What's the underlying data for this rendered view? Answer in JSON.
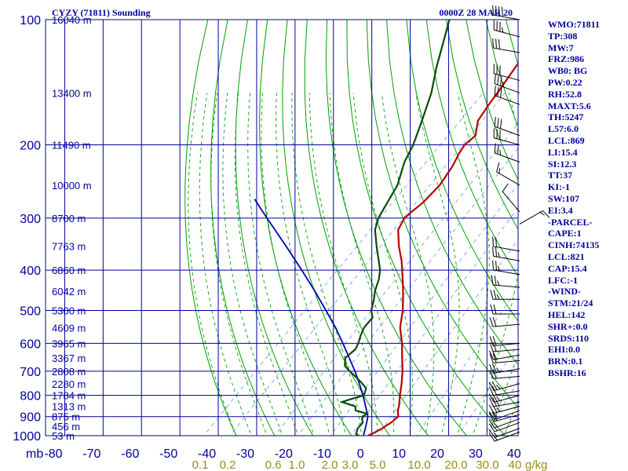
{
  "header": {
    "station": "CYZY (71811) Sounding",
    "time": "0000Z 28 MAR 20"
  },
  "colors": {
    "frame": "#00009c",
    "isotherm": "#00009c",
    "dry_adiabat": "#00a000",
    "moist_adiabat": "#006400",
    "mixing_ratio": "#7aa0e0",
    "temperature": "#b40000",
    "dewpoint": "#0a4a0a",
    "parcel": "#0000b4",
    "wind": "#000000",
    "mixing_ratio_labels": "#9a8c14"
  },
  "chart_data": {
    "type": "skew-t",
    "title": "CYZY (71811) Sounding",
    "valid_time": "0000Z 28 MAR 20",
    "y_axis": {
      "unit_label": "mb",
      "scale": "log-pressure",
      "range": [
        1000,
        100
      ],
      "pressure_ticks": [
        100,
        200,
        300,
        400,
        500,
        600,
        700,
        800,
        900,
        1000
      ]
    },
    "x_axis": {
      "range": [
        -80,
        0
      ],
      "temperature_ticks": [
        "-80",
        "-70",
        "-60",
        "-50",
        "-40",
        "-30",
        "-20",
        "-10",
        "0",
        "10",
        "20",
        "30",
        "40"
      ],
      "mixing_ratio_labels": [
        "0.1",
        "0.2",
        "0.6",
        "1.0",
        "2.0",
        "3.0",
        "5.0",
        "10.0",
        "20.0",
        "30.0",
        "40",
        "g/kg"
      ]
    },
    "height_labels": [
      {
        "p": 100,
        "label": "16040 m"
      },
      {
        "p": 150,
        "label": "13400 m"
      },
      {
        "p": 200,
        "label": "11490 m"
      },
      {
        "p": 250,
        "label": "10000 m"
      },
      {
        "p": 300,
        "label": "8700 m"
      },
      {
        "p": 350,
        "label": "7763 m"
      },
      {
        "p": 400,
        "label": "6860 m"
      },
      {
        "p": 450,
        "label": "6042 m"
      },
      {
        "p": 500,
        "label": "5300 m"
      },
      {
        "p": 550,
        "label": "4609 m"
      },
      {
        "p": 600,
        "label": "3965 m"
      },
      {
        "p": 650,
        "label": "3367 m"
      },
      {
        "p": 700,
        "label": "2808 m"
      },
      {
        "p": 750,
        "label": "2280 m"
      },
      {
        "p": 800,
        "label": "1784 m"
      },
      {
        "p": 850,
        "label": "1313 m"
      },
      {
        "p": 900,
        "label": "875 m"
      },
      {
        "p": 950,
        "label": "456 m"
      },
      {
        "p": 1000,
        "label": "53 m"
      }
    ],
    "series": [
      {
        "type": "line",
        "points": [
          [
            1000,
            1.2
          ],
          [
            985,
            2.0
          ],
          [
            960,
            3.0
          ],
          [
            930,
            3.8
          ],
          [
            900,
            4.1
          ],
          [
            870,
            2.4
          ],
          [
            850,
            1.6
          ],
          [
            800,
            -1.0
          ],
          [
            750,
            -3.6
          ],
          [
            700,
            -6.6
          ],
          [
            650,
            -10.2
          ],
          [
            600,
            -14.0
          ],
          [
            550,
            -18.6
          ],
          [
            500,
            -22.4
          ],
          [
            460,
            -26.2
          ],
          [
            420,
            -30.6
          ],
          [
            380,
            -35.6
          ],
          [
            350,
            -40.2
          ],
          [
            320,
            -44.6
          ],
          [
            300,
            -46.0
          ],
          [
            290,
            -45.8
          ],
          [
            275,
            -45.2
          ],
          [
            250,
            -45.4
          ],
          [
            225,
            -47.0
          ],
          [
            210,
            -48.6
          ],
          [
            200,
            -49.4
          ],
          [
            190,
            -49.0
          ],
          [
            175,
            -52.2
          ],
          [
            160,
            -53.6
          ],
          [
            150,
            -54.4
          ],
          [
            130,
            -56.4
          ],
          [
            115,
            -58.2
          ],
          [
            100,
            -59.6
          ]
        ]
      },
      {
        "type": "line",
        "points": [
          [
            1000,
            -1.2
          ],
          [
            990,
            -2.4
          ],
          [
            960,
            -3.4
          ],
          [
            930,
            -3.6
          ],
          [
            910,
            -4.8
          ],
          [
            900,
            -5.2
          ],
          [
            885,
            -4.8
          ],
          [
            870,
            -8.6
          ],
          [
            850,
            -9.8
          ],
          [
            830,
            -14.4
          ],
          [
            820,
            -13.2
          ],
          [
            800,
            -10.4
          ],
          [
            770,
            -11.6
          ],
          [
            745,
            -14.4
          ],
          [
            720,
            -17.6
          ],
          [
            700,
            -20.4
          ],
          [
            680,
            -23.0
          ],
          [
            650,
            -25.0
          ],
          [
            620,
            -24.6
          ],
          [
            600,
            -25.4
          ],
          [
            575,
            -26.8
          ],
          [
            550,
            -28.0
          ],
          [
            520,
            -28.4
          ],
          [
            500,
            -30.6
          ],
          [
            470,
            -32.8
          ],
          [
            450,
            -34.6
          ],
          [
            420,
            -36.8
          ],
          [
            400,
            -38.8
          ],
          [
            350,
            -46.0
          ],
          [
            320,
            -50.6
          ],
          [
            300,
            -52.8
          ],
          [
            250,
            -56.4
          ],
          [
            220,
            -60.6
          ],
          [
            200,
            -62.8
          ],
          [
            175,
            -66.8
          ],
          [
            150,
            -71.6
          ],
          [
            130,
            -77.0
          ],
          [
            115,
            -81.2
          ],
          [
            100,
            -86.0
          ]
        ]
      },
      {
        "type": "line",
        "points": [
          [
            1000,
            0.0
          ],
          [
            950,
            -1.8
          ],
          [
            900,
            -3.8
          ],
          [
            850,
            -7.1
          ],
          [
            800,
            -10.6
          ],
          [
            750,
            -14.6
          ],
          [
            700,
            -19.0
          ],
          [
            650,
            -24.0
          ],
          [
            600,
            -29.4
          ],
          [
            550,
            -35.4
          ],
          [
            500,
            -42.4
          ],
          [
            450,
            -50.2
          ],
          [
            400,
            -59.2
          ],
          [
            350,
            -69.6
          ],
          [
            300,
            -81.8
          ],
          [
            270,
            -90.0
          ]
        ]
      }
    ]
  },
  "wind_barbs": [
    {
      "p": 100,
      "dir": 280,
      "kt": 40
    },
    {
      "p": 110,
      "dir": 285,
      "kt": 35
    },
    {
      "p": 120,
      "dir": 280,
      "kt": 30
    },
    {
      "p": 140,
      "dir": 285,
      "kt": 30
    },
    {
      "p": 150,
      "dir": 290,
      "kt": 35
    },
    {
      "p": 160,
      "dir": 290,
      "kt": 30
    },
    {
      "p": 190,
      "dir": 290,
      "kt": 30
    },
    {
      "p": 200,
      "dir": 285,
      "kt": 30
    },
    {
      "p": 220,
      "dir": 290,
      "kt": 25
    },
    {
      "p": 250,
      "dir": 300,
      "kt": 15
    },
    {
      "p": 290,
      "dir": 320,
      "kt": 10
    },
    {
      "p": 310,
      "dir": 60,
      "kt": 15
    },
    {
      "p": 360,
      "dir": 280,
      "kt": 20
    },
    {
      "p": 380,
      "dir": 280,
      "kt": 25
    },
    {
      "p": 410,
      "dir": 280,
      "kt": 25
    },
    {
      "p": 440,
      "dir": 275,
      "kt": 25
    },
    {
      "p": 470,
      "dir": 270,
      "kt": 25
    },
    {
      "p": 510,
      "dir": 270,
      "kt": 20
    },
    {
      "p": 540,
      "dir": 265,
      "kt": 20
    },
    {
      "p": 600,
      "dir": 265,
      "kt": 20
    },
    {
      "p": 620,
      "dir": 265,
      "kt": 20
    },
    {
      "p": 640,
      "dir": 260,
      "kt": 20
    },
    {
      "p": 660,
      "dir": 265,
      "kt": 20
    },
    {
      "p": 690,
      "dir": 260,
      "kt": 25
    },
    {
      "p": 720,
      "dir": 265,
      "kt": 20
    },
    {
      "p": 750,
      "dir": 255,
      "kt": 25
    },
    {
      "p": 780,
      "dir": 260,
      "kt": 20
    },
    {
      "p": 800,
      "dir": 255,
      "kt": 25
    },
    {
      "p": 830,
      "dir": 260,
      "kt": 25
    },
    {
      "p": 850,
      "dir": 255,
      "kt": 25
    },
    {
      "p": 870,
      "dir": 250,
      "kt": 20
    },
    {
      "p": 890,
      "dir": 255,
      "kt": 20
    },
    {
      "p": 910,
      "dir": 250,
      "kt": 15
    },
    {
      "p": 930,
      "dir": 250,
      "kt": 15
    },
    {
      "p": 960,
      "dir": 250,
      "kt": 15
    },
    {
      "p": 980,
      "dir": 250,
      "kt": 15
    }
  ],
  "indices": [
    "WMO:71811",
    "TP:308",
    "MW:7",
    "FRZ:986",
    "WB0: BG",
    "PW:0.22",
    "RH:52.8",
    "MAXT:5.6",
    "TH:5247",
    "L57:6.0",
    "LCL:869",
    "LI:15.4",
    "SI:12.3",
    "TT:37",
    "KI:-1",
    "SW:107",
    "EI:3.4",
    "-PARCEL-",
    "CAPE:1",
    "CINH:74135",
    "LCL:821",
    "CAP:15.4",
    "LFC:-1",
    "-WIND-",
    "STM:21/24",
    "HEL:142",
    "SHR+:0.0",
    "SRDS:110",
    "EHI:0.0",
    "BRN:0.1",
    "BSHR:16"
  ]
}
